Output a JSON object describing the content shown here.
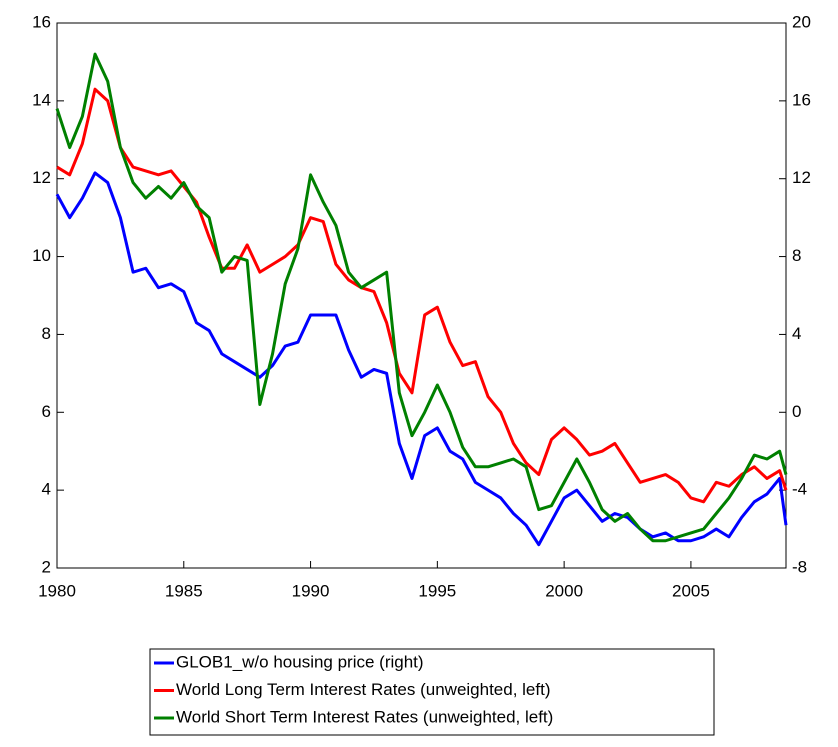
{
  "chart_data": {
    "type": "line",
    "x": [
      1980,
      1980.5,
      1981,
      1981.5,
      1982,
      1982.5,
      1983,
      1983.5,
      1984,
      1984.5,
      1985,
      1985.5,
      1986,
      1986.5,
      1987,
      1987.5,
      1988,
      1988.5,
      1989,
      1989.5,
      1990,
      1990.5,
      1991,
      1991.5,
      1992,
      1992.5,
      1993,
      1993.5,
      1994,
      1994.5,
      1995,
      1995.5,
      1996,
      1996.5,
      1997,
      1997.5,
      1998,
      1998.5,
      1999,
      1999.5,
      2000,
      2000.5,
      2001,
      2001.5,
      2002,
      2002.5,
      2003,
      2003.5,
      2004,
      2004.5,
      2005,
      2005.5,
      2006,
      2006.5,
      2007,
      2007.5,
      2008,
      2008.5,
      2008.75
    ],
    "xlim": [
      1980,
      2008.75
    ],
    "xticks": [
      1980,
      1985,
      1990,
      1995,
      2000,
      2005
    ],
    "ylim": [
      2,
      16
    ],
    "yticks": [
      2,
      4,
      6,
      8,
      10,
      12,
      14,
      16
    ],
    "y2lim": [
      -8,
      20
    ],
    "y2ticks": [
      -8,
      -4,
      0,
      4,
      8,
      12,
      16,
      20
    ],
    "series": [
      {
        "name": "GLOB1_w/o housing price (right)",
        "color": "#0000ff",
        "axis": "y2",
        "values": [
          11.2,
          10,
          11,
          12.3,
          11.8,
          10,
          7.2,
          7.4,
          6.4,
          6.6,
          6.2,
          4.6,
          4.2,
          3,
          2.6,
          2.2,
          1.8,
          2.4,
          3.4,
          3.6,
          5,
          5,
          5,
          3.2,
          1.8,
          2.2,
          2,
          -1.6,
          -3.4,
          -1.2,
          -0.8,
          -2,
          -2.4,
          -3.6,
          -4,
          -4.4,
          -5.2,
          -5.8,
          -6.8,
          -5.6,
          -4.4,
          -4,
          -4.8,
          -5.6,
          -5.2,
          -5.4,
          -6,
          -6.4,
          -6.2,
          -6.6,
          -6.6,
          -6.4,
          -6,
          -6.4,
          -5.4,
          -4.6,
          -4.2,
          -3.4,
          -5.8
        ]
      },
      {
        "name": "World Long Term Interest Rates (unweighted, left)",
        "color": "#ff0000",
        "values": [
          12.3,
          12.1,
          12.9,
          14.3,
          14.0,
          12.8,
          12.3,
          12.2,
          12.1,
          12.2,
          11.8,
          11.4,
          10.5,
          9.7,
          9.7,
          10.3,
          9.6,
          9.8,
          10.0,
          10.3,
          11.0,
          10.9,
          9.8,
          9.4,
          9.2,
          9.1,
          8.3,
          7.0,
          6.5,
          8.5,
          8.7,
          7.8,
          7.2,
          7.3,
          6.4,
          6.0,
          5.2,
          4.7,
          4.4,
          5.3,
          5.6,
          5.3,
          4.9,
          5.0,
          5.2,
          4.7,
          4.2,
          4.3,
          4.4,
          4.2,
          3.8,
          3.7,
          4.2,
          4.1,
          4.4,
          4.6,
          4.3,
          4.5,
          4.0
        ]
      },
      {
        "name": "World Short Term Interest Rates (unweighted, left)",
        "color": "#008000",
        "values": [
          13.8,
          12.8,
          13.6,
          15.2,
          14.5,
          12.8,
          11.9,
          11.5,
          11.8,
          11.5,
          11.9,
          11.3,
          11.0,
          9.6,
          10.0,
          9.9,
          6.2,
          7.5,
          9.3,
          10.2,
          12.1,
          11.4,
          10.8,
          9.6,
          9.2,
          9.4,
          9.6,
          6.5,
          5.4,
          6.0,
          6.7,
          6.0,
          5.1,
          4.6,
          4.6,
          4.7,
          4.8,
          4.6,
          3.5,
          3.6,
          4.2,
          4.8,
          4.2,
          3.5,
          3.2,
          3.4,
          3.0,
          2.7,
          2.7,
          2.8,
          2.9,
          3.0,
          3.4,
          3.8,
          4.3,
          4.9,
          4.8,
          5.0,
          4.4
        ]
      }
    ]
  }
}
